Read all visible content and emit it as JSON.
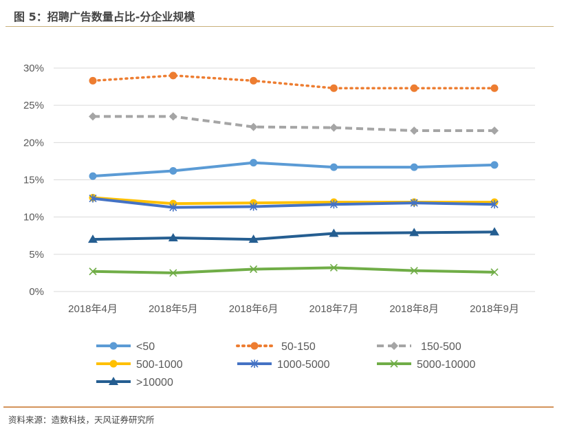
{
  "header": {
    "title": "图 5：招聘广告数量占比-分企业规模"
  },
  "footer": {
    "source": "资料来源：造数科技，天风证券研究所"
  },
  "chart_data": {
    "type": "line",
    "title": "",
    "xlabel": "",
    "ylabel": "",
    "categories": [
      "2018年4月",
      "2018年5月",
      "2018年6月",
      "2018年7月",
      "2018年8月",
      "2018年9月"
    ],
    "ylim": [
      0,
      30
    ],
    "yticks": [
      "0%",
      "5%",
      "10%",
      "15%",
      "20%",
      "25%",
      "30%"
    ],
    "grid": true,
    "legend": "bottom",
    "series": [
      {
        "name": "<50",
        "color": "#5b9bd5",
        "marker": "circle",
        "dash": "solid",
        "values": [
          15.5,
          16.2,
          17.3,
          16.7,
          16.7,
          17.0
        ]
      },
      {
        "name": "50-150",
        "color": "#ed7d31",
        "marker": "circle",
        "dash": "dotted",
        "values": [
          28.3,
          29.0,
          28.3,
          27.3,
          27.3,
          27.3
        ]
      },
      {
        "name": "150-500",
        "color": "#a5a5a5",
        "marker": "diamond",
        "dash": "dashed",
        "values": [
          23.5,
          23.5,
          22.1,
          22.0,
          21.6,
          21.6
        ]
      },
      {
        "name": "500-1000",
        "color": "#ffc000",
        "marker": "circle",
        "dash": "solid",
        "values": [
          12.6,
          11.8,
          11.9,
          12.0,
          12.0,
          12.0
        ]
      },
      {
        "name": "1000-5000",
        "color": "#4472c4",
        "marker": "asterisk",
        "dash": "solid",
        "values": [
          12.5,
          11.3,
          11.4,
          11.7,
          11.9,
          11.7
        ]
      },
      {
        "name": "5000-10000",
        "color": "#70ad47",
        "marker": "x",
        "dash": "solid",
        "values": [
          2.7,
          2.5,
          3.0,
          3.2,
          2.8,
          2.6
        ]
      },
      {
        "name": ">10000",
        "color": "#255e91",
        "marker": "triangle",
        "dash": "solid",
        "values": [
          7.0,
          7.2,
          7.0,
          7.8,
          7.9,
          8.0
        ]
      }
    ]
  }
}
